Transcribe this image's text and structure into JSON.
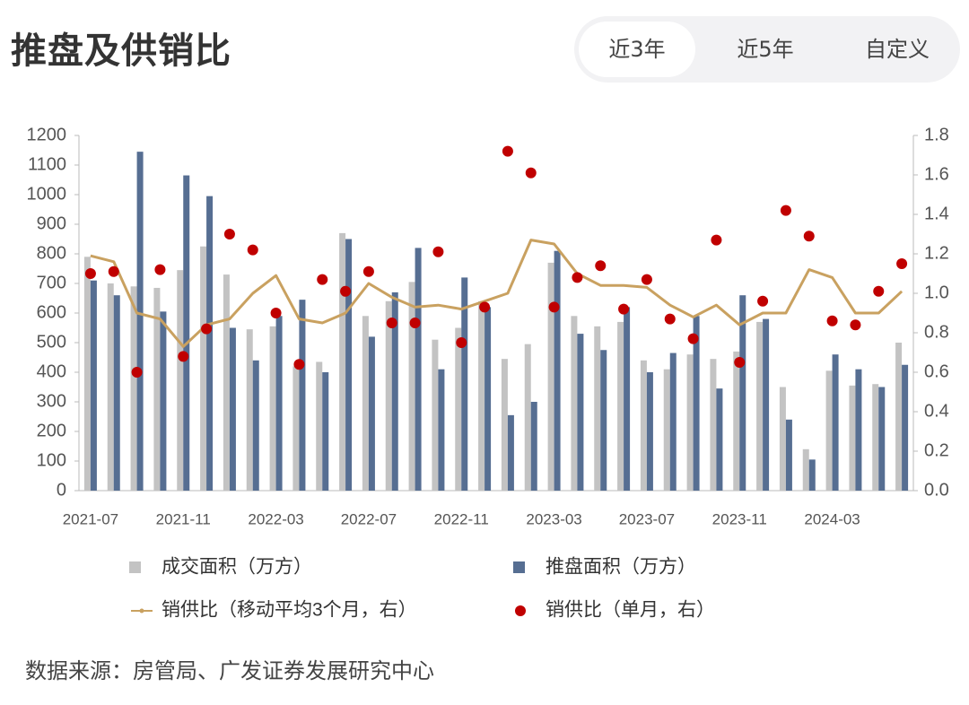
{
  "header": {
    "title": "推盘及供销比",
    "tabs": [
      "近3年",
      "近5年",
      "自定义"
    ],
    "active_tab": 0
  },
  "chart_data": {
    "type": "bar",
    "categories": [
      "2021-07",
      null,
      null,
      null,
      "2021-11",
      null,
      null,
      null,
      "2022-03",
      null,
      null,
      null,
      "2022-07",
      null,
      null,
      null,
      "2022-11",
      null,
      null,
      null,
      "2023-03",
      null,
      null,
      null,
      "2023-07",
      null,
      null,
      null,
      "2023-11",
      null,
      null,
      null,
      "2024-03",
      null,
      null,
      null
    ],
    "series": [
      {
        "name": "成交面积（万方）",
        "type": "bar",
        "color": "#c3c3c3",
        "values": [
          790,
          700,
          690,
          685,
          745,
          825,
          730,
          545,
          555,
          420,
          435,
          870,
          590,
          640,
          705,
          510,
          550,
          640,
          445,
          495,
          770,
          590,
          555,
          570,
          440,
          410,
          460,
          445,
          470,
          570,
          350,
          140,
          405,
          355,
          360,
          500
        ]
      },
      {
        "name": "推盘面积（万方）",
        "type": "bar",
        "color": "#566e92",
        "values": [
          710,
          660,
          1145,
          605,
          1065,
          995,
          550,
          440,
          590,
          645,
          400,
          850,
          520,
          670,
          820,
          410,
          720,
          620,
          255,
          300,
          810,
          530,
          475,
          620,
          400,
          465,
          590,
          345,
          660,
          580,
          240,
          105,
          460,
          410,
          350,
          425
        ]
      },
      {
        "name": "销供比（移动平均3个月，右）",
        "type": "line",
        "axis": "y2",
        "color": "#c9a160",
        "values": [
          1.19,
          1.16,
          0.9,
          0.87,
          0.73,
          0.84,
          0.87,
          1.0,
          1.09,
          0.87,
          0.85,
          0.9,
          1.05,
          0.98,
          0.93,
          0.94,
          0.92,
          0.96,
          1.0,
          1.27,
          1.25,
          1.1,
          1.04,
          1.04,
          1.03,
          0.94,
          0.88,
          0.94,
          0.84,
          0.9,
          0.9,
          1.12,
          1.08,
          0.9,
          0.9,
          1.01
        ]
      },
      {
        "name": "销供比（单月，右）",
        "type": "scatter",
        "axis": "y2",
        "color": "#c00000",
        "values": [
          1.1,
          1.11,
          0.6,
          1.12,
          0.68,
          0.82,
          1.3,
          1.22,
          0.9,
          0.64,
          1.07,
          1.01,
          1.11,
          0.85,
          0.85,
          1.21,
          0.75,
          0.93,
          1.72,
          1.61,
          0.93,
          1.08,
          1.14,
          0.92,
          1.07,
          0.87,
          0.77,
          1.27,
          0.65,
          0.96,
          1.42,
          1.29,
          0.86,
          0.84,
          1.01,
          1.15
        ]
      }
    ],
    "ylim": [
      0,
      1200
    ],
    "yticks": [
      0,
      100,
      200,
      300,
      400,
      500,
      600,
      700,
      800,
      900,
      1000,
      1100,
      1200
    ],
    "y2lim": [
      0,
      1.8
    ],
    "y2ticks": [
      {
        "value": 0,
        "label": "0.0"
      },
      0.2,
      0.4,
      0.6,
      0.8,
      {
        "value": 1,
        "label": "1.0"
      },
      1.2,
      1.4,
      1.6,
      1.8
    ],
    "grid": false
  },
  "source": "数据来源：房管局、广发证券发展研究中心"
}
